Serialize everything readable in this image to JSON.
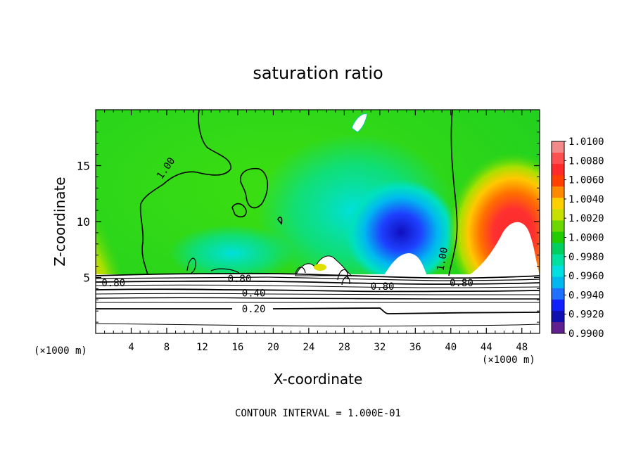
{
  "chart_data": {
    "type": "heatmap",
    "title": "saturation ratio",
    "xlabel": "X-coordinate",
    "ylabel": "Z-coordinate",
    "x_unit_left": "(×1000 m)",
    "x_unit_right": "(×1000 m)",
    "xlim": [
      0,
      50
    ],
    "ylim": [
      0,
      20
    ],
    "x_ticks": [
      "4",
      "8",
      "12",
      "16",
      "20",
      "24",
      "28",
      "32",
      "36",
      "40",
      "44",
      "48"
    ],
    "y_ticks": [
      "5",
      "10",
      "15"
    ],
    "colorbar": {
      "labels": [
        "1.0100",
        "1.0080",
        "1.0060",
        "1.0040",
        "1.0020",
        "1.0000",
        "0.9980",
        "0.9960",
        "0.9940",
        "0.9920",
        "0.9900"
      ],
      "colors": [
        "#f28a8a",
        "#ff5050",
        "#ff2a2a",
        "#ff4000",
        "#ff8a00",
        "#ffd000",
        "#c8e000",
        "#6cd800",
        "#22cc00",
        "#00d060",
        "#00e0a0",
        "#00e0e0",
        "#00b8f0",
        "#2070ff",
        "#1020ff",
        "#1010b0",
        "#602090"
      ]
    },
    "contour_labels": [
      {
        "text": "1.00",
        "x": 8.2,
        "z": 14.6,
        "angle": -55
      },
      {
        "text": "1.00",
        "x": 39.4,
        "z": 6.6,
        "angle": -80
      },
      {
        "text": "0.80",
        "x": 2.0,
        "z": 4.2,
        "angle": 0
      },
      {
        "text": "0.80",
        "x": 16.2,
        "z": 4.6,
        "angle": 0
      },
      {
        "text": "0.80",
        "x": 32.3,
        "z": 3.9,
        "angle": 0
      },
      {
        "text": "0.80",
        "x": 41.2,
        "z": 4.2,
        "angle": 0
      },
      {
        "text": "0.40",
        "x": 17.8,
        "z": 3.3,
        "angle": 0
      },
      {
        "text": "0.20",
        "x": 17.8,
        "z": 1.9,
        "angle": 0
      }
    ],
    "contour_interval_text": "CONTOUR INTERVAL = 1.000E-01",
    "grid": false,
    "legend_position": "right"
  }
}
